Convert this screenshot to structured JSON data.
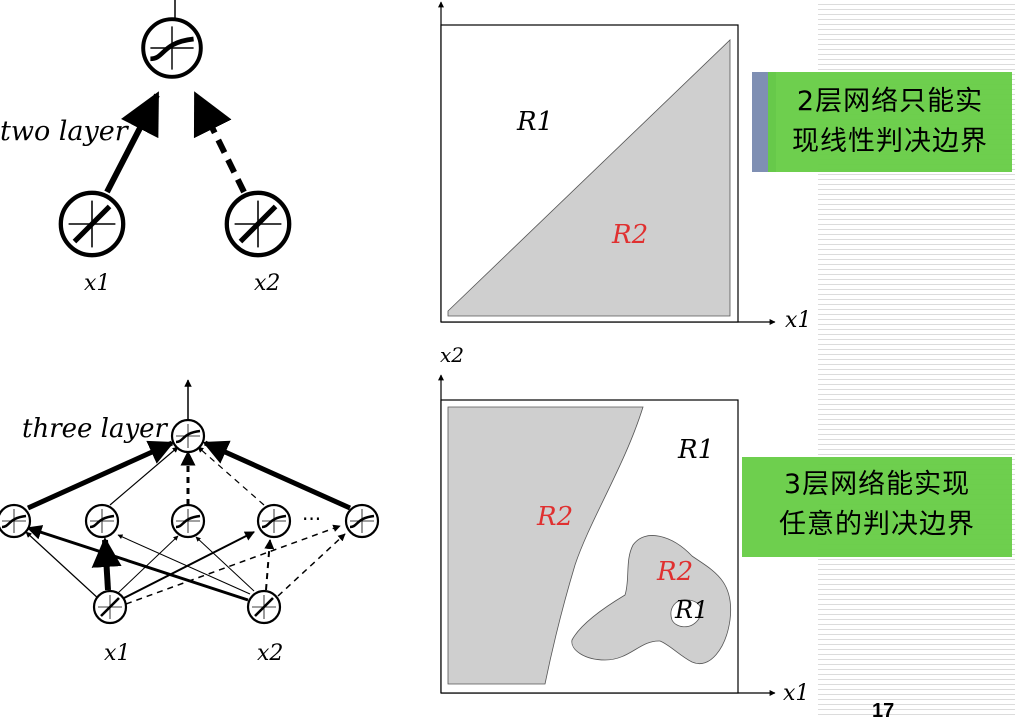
{
  "top_network": {
    "label": "two layer",
    "inputs": [
      "x1",
      "x2"
    ]
  },
  "bottom_network": {
    "label": "three layer",
    "inputs": [
      "x1",
      "x2"
    ],
    "ellipsis": "···"
  },
  "top_plot": {
    "region_1": "R1",
    "region_2": "R2",
    "x_axis": "x1"
  },
  "bottom_plot": {
    "y_axis": "x2",
    "x_axis": "x1",
    "region_1_outer": "R1",
    "region_2_left": "R2",
    "region_2_blob": "R2",
    "region_1_hole": "R1"
  },
  "caption_top": {
    "line1": "2层网络只能实",
    "line2": "现线性判决边界"
  },
  "caption_bottom": {
    "line1": "3层网络能实现",
    "line2": "任意的判决边界"
  },
  "page_number": "17",
  "colors": {
    "region_fill": "#cfcfcf",
    "caption_green": "#66cc44",
    "caption_bar_blue": "#7f8fb3",
    "region2_label": "#e03030"
  }
}
